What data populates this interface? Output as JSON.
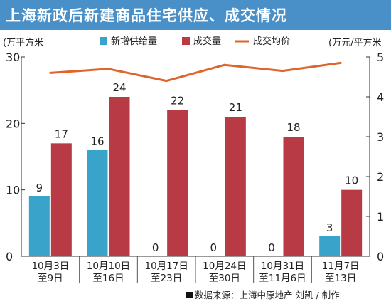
{
  "title": "上海新政后新建商品住宅供应、成交情况",
  "colors": {
    "title_bg": "#4a90c8",
    "supply": "#3aa3c9",
    "deal": "#b73a45",
    "price": "#e0652a"
  },
  "chart_data": {
    "type": "bar",
    "categories": [
      [
        "10月3日",
        "至9日"
      ],
      [
        "10月10日",
        "至16日"
      ],
      [
        "10月17日",
        "至23日"
      ],
      [
        "10月24日",
        "至30日"
      ],
      [
        "10月31日",
        "至11月6日"
      ],
      [
        "11月7日",
        "至13日"
      ]
    ],
    "series": [
      {
        "name": "新增供给量",
        "type": "bar",
        "axis": "left",
        "values": [
          9,
          16,
          0,
          0,
          0,
          3
        ]
      },
      {
        "name": "成交量",
        "type": "bar",
        "axis": "left",
        "values": [
          17,
          24,
          22,
          21,
          18,
          10
        ]
      },
      {
        "name": "成交均价",
        "type": "line",
        "axis": "right",
        "values": [
          4.6,
          4.7,
          4.4,
          4.8,
          4.65,
          4.85
        ]
      }
    ],
    "left_axis": {
      "label": "万平方米",
      "min": 0,
      "max": 30,
      "ticks": [
        0,
        10,
        20,
        30
      ]
    },
    "right_axis": {
      "label": "万元/平方米",
      "min": 0,
      "max": 5,
      "ticks": [
        0,
        1,
        2,
        3,
        4,
        5
      ]
    },
    "legend": "top",
    "grid": false
  },
  "source": "数据来源：上海中原地产 刘凯 / 制作"
}
